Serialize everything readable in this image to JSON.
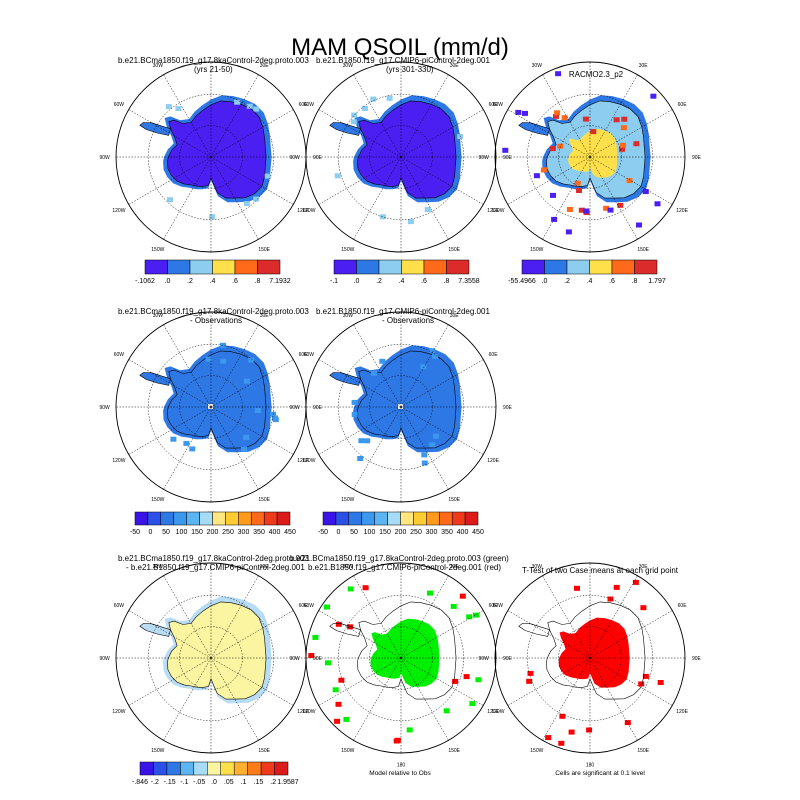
{
  "title": "MAM QSOIL (mm/d)",
  "colors": {
    "ocean": "#ffffff",
    "deep_blue": "#4b1ef2",
    "mid_blue": "#2e78e6",
    "light_blue": "#8ccdf0",
    "yellow": "#ffe04a",
    "orange": "#ff6a1a",
    "red": "#dc2b2b",
    "pale_yellow": "#fbf4a0",
    "pale_blue": "#b8dcf4",
    "green": "#00ee00",
    "sig_red": "#ff0000"
  },
  "lon_labels": [
    "30W",
    "30E",
    "60W",
    "60E",
    "90W",
    "90E",
    "120W",
    "120E",
    "150W",
    "150E",
    "180"
  ],
  "panels": [
    {
      "title_lines": [
        "b.e21.BCma1850.f19_g17.8kaControl-2deg.proto.003",
        "(yrs 21-50)"
      ],
      "title_align": "left"
    },
    {
      "title_lines": [
        "b.e21.B1850.f19_g17.CMIP6-piControl-2deg.001",
        "(yrs 301-330)"
      ],
      "title_align": "left"
    },
    {
      "title_lines": [
        "RACMO2.3_p2"
      ],
      "title_align": "center"
    },
    {
      "title_lines": [
        "b.e21.BCma1850.f19_g17.8kaControl-2deg.proto.003",
        "- Observations"
      ],
      "title_align": "left"
    },
    {
      "title_lines": [
        "b.e21.B1850.f19_g17.CMIP6-piControl-2deg.001",
        "- Observations"
      ],
      "title_align": "left"
    },
    {
      "title_lines": [
        "b.e21.BCma1850.f19_g17.8kaControl-2deg.proto.003",
        "- b.e21.B1850.f19_g17.CMIP6-piControl-2deg.001"
      ],
      "title_align": "left"
    },
    {
      "title_lines": [
        "b.e21.BCma1850.f19_g17.8kaControl-2deg.proto.003 (green)",
        "b.e21.B1850.f19_g17.CMIP6-piControl-2deg.001 (red)"
      ],
      "title_align": "left"
    },
    {
      "title_lines": [
        "T-Test of two Case means at each grid point"
      ],
      "title_align": "center"
    }
  ],
  "colorbars": [
    {
      "labels": [
        "-.1062",
        ".0",
        ".2",
        ".4",
        ".6",
        ".8",
        "7.1932"
      ],
      "colors": [
        "#4b1ef2",
        "#2e78e6",
        "#8ccdf0",
        "#ffe04a",
        "#ff6a1a",
        "#dc2b2b"
      ]
    },
    {
      "labels": [
        "-.1",
        ".0",
        ".2",
        ".4",
        ".6",
        ".8",
        "7.3558"
      ],
      "colors": [
        "#4b1ef2",
        "#2e78e6",
        "#8ccdf0",
        "#ffe04a",
        "#ff6a1a",
        "#dc2b2b"
      ]
    },
    {
      "labels": [
        "-55.4966",
        ".0",
        ".2",
        ".4",
        ".6",
        ".8",
        "1.797"
      ],
      "colors": [
        "#4b1ef2",
        "#2e78e6",
        "#8ccdf0",
        "#ffe04a",
        "#ff6a1a",
        "#dc2b2b"
      ]
    },
    {
      "labels": [
        "-50",
        "0",
        "50",
        "100",
        "150",
        "200",
        "250",
        "300",
        "350",
        "400",
        "450"
      ],
      "colors": [
        "#3a14e6",
        "#2a50e8",
        "#2e78e6",
        "#3c98ee",
        "#5cb4f2",
        "#a6dcf6",
        "#ffe680",
        "#ffcc33",
        "#ff9a1a",
        "#ff6a1a",
        "#ee3a1a",
        "#dc1a1a"
      ]
    },
    {
      "labels": [
        "-50",
        "0",
        "50",
        "100",
        "150",
        "200",
        "250",
        "300",
        "350",
        "400",
        "450"
      ],
      "colors": [
        "#3a14e6",
        "#2a50e8",
        "#2e78e6",
        "#3c98ee",
        "#5cb4f2",
        "#a6dcf6",
        "#ffe680",
        "#ffcc33",
        "#ff9a1a",
        "#ff6a1a",
        "#ee3a1a",
        "#dc1a1a"
      ]
    },
    {
      "labels": [
        "-.846",
        "-.2",
        "-.15",
        "-.1",
        "-.05",
        ".0",
        ".05",
        ".1",
        ".15",
        ".2",
        "1.9587"
      ],
      "colors": [
        "#3a14e6",
        "#2a50e8",
        "#2e78e6",
        "#5cb4f2",
        "#a6dcf6",
        "#fbf4a0",
        "#ffe04a",
        "#ffb030",
        "#ff7a1a",
        "#ee3a1a",
        "#dc1a1a"
      ]
    }
  ],
  "captions": [
    "Model relative to Obs",
    "Cells are significant at 0.1 level"
  ],
  "chart_data": {
    "type": "heatmap",
    "title": "MAM QSOIL (mm/d)",
    "projection": "south polar stereographic",
    "variable": "QSOIL",
    "season": "MAM",
    "units": "mm/d",
    "panels": [
      {
        "title": "b.e21.BCma1850.f19_g17.8kaControl-2deg.proto.003 (yrs 21-50)",
        "colorbar_min": -0.1062,
        "colorbar_max": 7.1932,
        "levels": [
          0,
          0.2,
          0.4,
          0.6,
          0.8
        ]
      },
      {
        "title": "b.e21.B1850.f19_g17.CMIP6-piControl-2deg.001 (yrs 301-330)",
        "colorbar_min": -0.1,
        "colorbar_max": 7.3558,
        "levels": [
          0,
          0.2,
          0.4,
          0.6,
          0.8
        ]
      },
      {
        "title": "RACMO2.3_p2",
        "colorbar_min": -55.4966,
        "colorbar_max": 1.797,
        "levels": [
          0,
          0.2,
          0.4,
          0.6,
          0.8
        ]
      },
      {
        "title": "b.e21.BCma1850.f19_g17.8kaControl-2deg.proto.003 - Observations",
        "levels": [
          -50,
          0,
          50,
          100,
          150,
          200,
          250,
          300,
          350,
          400,
          450
        ]
      },
      {
        "title": "b.e21.B1850.f19_g17.CMIP6-piControl-2deg.001 - Observations",
        "levels": [
          -50,
          0,
          50,
          100,
          150,
          200,
          250,
          300,
          350,
          400,
          450
        ]
      },
      {
        "title": "b.e21.BCma1850.f19_g17.8kaControl-2deg.proto.003 - b.e21.B1850.f19_g17.CMIP6-piControl-2deg.001",
        "colorbar_min": -0.846,
        "colorbar_max": 1.9587,
        "levels": [
          -0.2,
          -0.15,
          -0.1,
          -0.05,
          0,
          0.05,
          0.1,
          0.15,
          0.2
        ]
      },
      {
        "title": "b.e21.BCma1850.f19_g17.8kaControl-2deg.proto.003 (green) b.e21.B1850.f19_g17.CMIP6-piControl-2deg.001 (red)",
        "caption": "Model relative to Obs"
      },
      {
        "title": "T-Test of two Case means at each grid point",
        "caption": "Cells are significant at 0.1 level"
      }
    ]
  }
}
